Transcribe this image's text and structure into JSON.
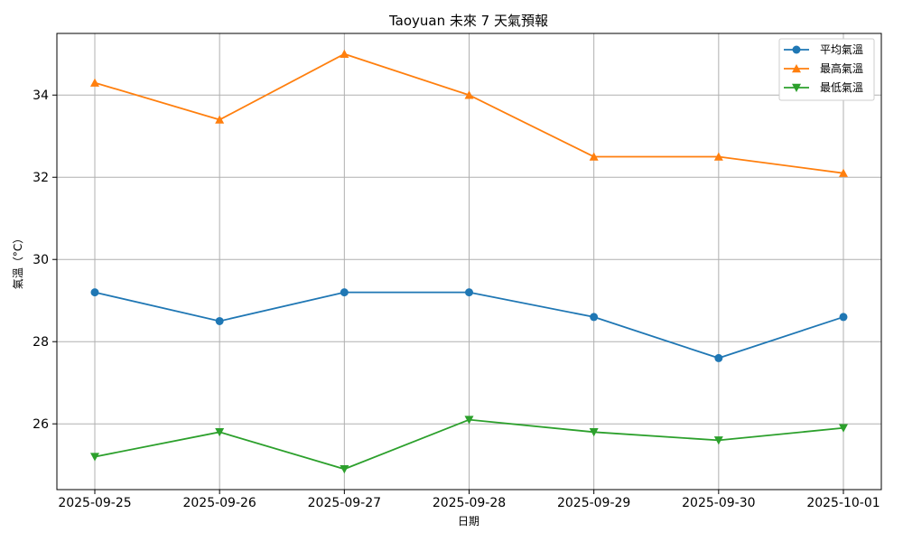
{
  "chart_data": {
    "type": "line",
    "title": "Taoyuan 未來 7 天氣預報",
    "xlabel": "日期",
    "ylabel": "氣溫（°C）",
    "categories": [
      "2025-09-25",
      "2025-09-26",
      "2025-09-27",
      "2025-09-28",
      "2025-09-29",
      "2025-09-30",
      "2025-10-01"
    ],
    "ylim": [
      24.4,
      35.5
    ],
    "yticks": [
      26,
      28,
      30,
      32,
      34
    ],
    "grid": true,
    "legend_position": "top-right",
    "series": [
      {
        "name": "平均氣溫",
        "color": "#1f77b4",
        "marker": "circle",
        "values": [
          29.2,
          28.5,
          29.2,
          29.2,
          28.6,
          27.6,
          28.6
        ]
      },
      {
        "name": "最高氣溫",
        "color": "#ff7f0e",
        "marker": "triangle-up",
        "values": [
          34.3,
          33.4,
          35.0,
          34.0,
          32.5,
          32.5,
          32.1
        ]
      },
      {
        "name": "最低氣溫",
        "color": "#2ca02c",
        "marker": "triangle-down",
        "values": [
          25.2,
          25.8,
          24.9,
          26.1,
          25.8,
          25.6,
          25.9
        ]
      }
    ]
  }
}
